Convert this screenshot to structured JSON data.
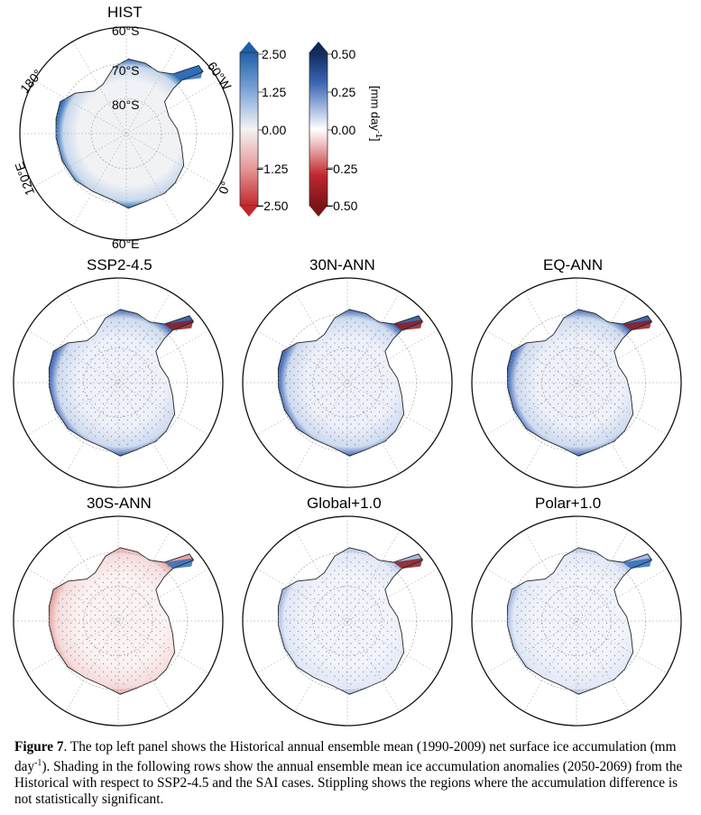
{
  "figure": {
    "panels": [
      {
        "id": "hist",
        "title": "HIST"
      },
      {
        "id": "ssp",
        "title": "SSP2-4.5"
      },
      {
        "id": "n30",
        "title": "30N-ANN"
      },
      {
        "id": "eq",
        "title": "EQ-ANN"
      },
      {
        "id": "s30",
        "title": "30S-ANN"
      },
      {
        "id": "glob",
        "title": "Global+1.0"
      },
      {
        "id": "polar",
        "title": "Polar+1.0"
      }
    ],
    "hist_map_labels": {
      "lat60": "60°S",
      "lat70": "70°S",
      "lat80": "80°S",
      "lon180": "180°",
      "lon60w": "60°W",
      "lon120e": "120°E",
      "lon0": "0°",
      "lon60e": "60°E"
    },
    "colorbar_left": {
      "ticks": [
        "2.50",
        "1.25",
        "0.00",
        "−1.25",
        "−2.50"
      ],
      "colors": {
        "top": "#1f5fa8",
        "mid": "#f4f4f4",
        "bottom": "#c0282d"
      }
    },
    "colorbar_right": {
      "ticks": [
        "0.50",
        "0.25",
        "0.00",
        "−0.25",
        "−0.50"
      ],
      "colors": {
        "top": "#0d2a5c",
        "mid": "#ffffff",
        "bottom": "#7a1418"
      }
    },
    "units": "[mm day",
    "units_sup": "-1",
    "units_end": "]"
  },
  "caption": {
    "label": "Figure 7",
    "text1": ". The top left panel shows the Historical annual ensemble mean (1990-2009) net surface ice accumulation (mm day",
    "sup": "-1",
    "text2": "). Shading in the following rows show the annual ensemble mean ice accumulation anomalies (2050-2069) from the Historical with respect to SSP2-4.5 and the SAI cases. Stippling shows the regions where the accumulation difference is not statistically significant."
  }
}
